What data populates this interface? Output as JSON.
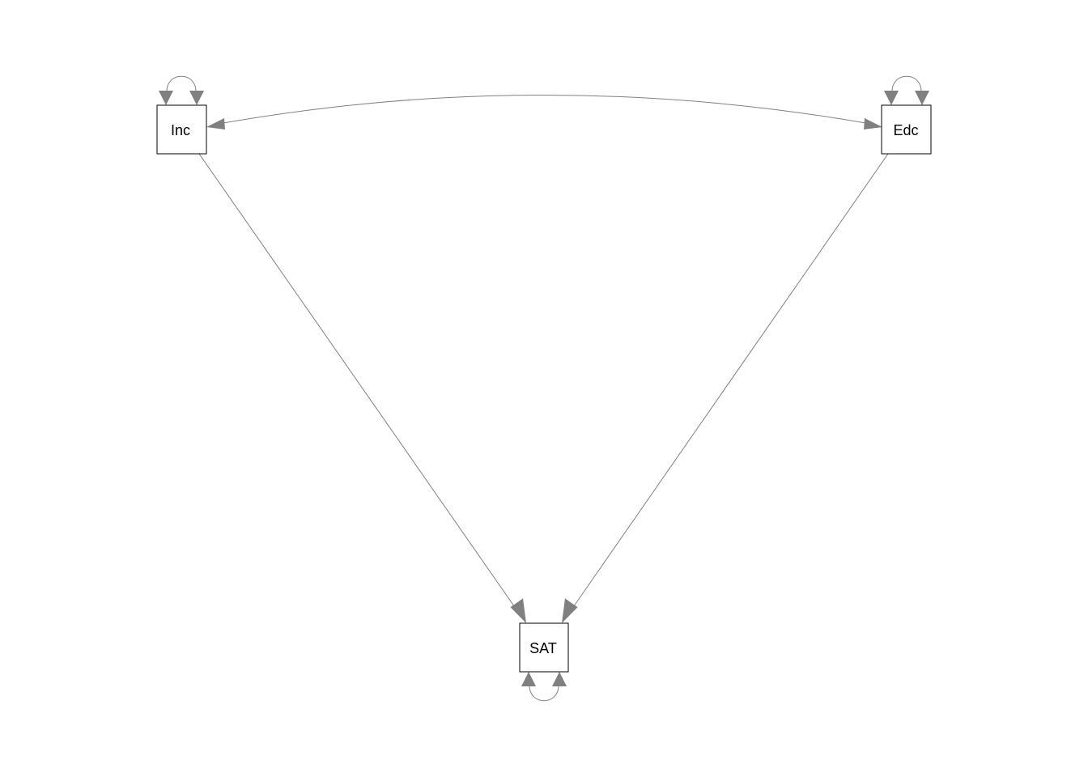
{
  "diagram": {
    "type": "path-diagram",
    "nodes": [
      {
        "id": "inc",
        "label": "Inc"
      },
      {
        "id": "edc",
        "label": "Edc"
      },
      {
        "id": "sat",
        "label": "SAT"
      }
    ],
    "edges": [
      {
        "from": "inc",
        "to": "sat",
        "kind": "directed"
      },
      {
        "from": "edc",
        "to": "sat",
        "kind": "directed"
      },
      {
        "from": "inc",
        "to": "edc",
        "kind": "covariance"
      },
      {
        "from": "inc",
        "to": "inc",
        "kind": "variance"
      },
      {
        "from": "edc",
        "to": "edc",
        "kind": "variance"
      },
      {
        "from": "sat",
        "to": "sat",
        "kind": "variance"
      }
    ],
    "colors": {
      "edge": "#808080",
      "box_stroke": "#000000",
      "background": "#ffffff"
    }
  }
}
